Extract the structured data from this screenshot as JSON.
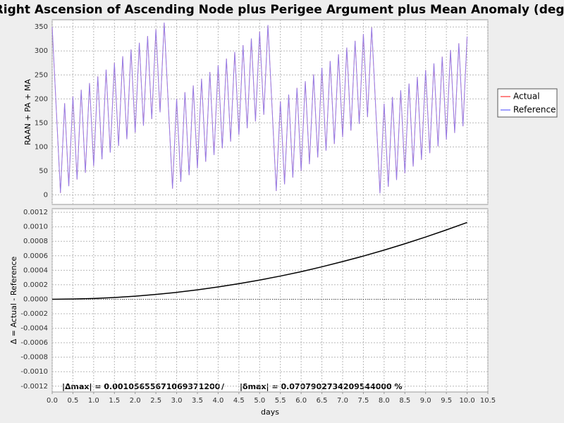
{
  "chart_data": [
    {
      "type": "line",
      "title": "Right Ascension of Ascending Node plus Perigee Argument plus Mean Anomaly (deg)",
      "ylabel": "RAAN + PA + MA",
      "x": [
        0,
        0.1,
        0.2,
        0.3,
        0.4,
        0.5,
        0.6,
        0.7,
        0.8,
        0.9,
        1,
        1.1,
        1.2,
        1.3,
        1.4,
        1.5,
        1.6,
        1.7,
        1.8,
        1.9,
        2,
        2.1,
        2.2,
        2.3,
        2.4,
        2.5,
        2.6,
        2.7,
        2.8,
        2.9,
        3,
        3.1,
        3.2,
        3.3,
        3.4,
        3.5,
        3.6,
        3.7,
        3.8,
        3.9,
        4,
        4.1,
        4.2,
        4.3,
        4.4,
        4.5,
        4.6,
        4.7,
        4.8,
        4.9,
        5,
        5.1,
        5.2,
        5.3,
        5.4,
        5.5,
        5.6,
        5.7,
        5.8,
        5.9,
        6,
        6.1,
        6.2,
        6.3,
        6.4,
        6.5,
        6.6,
        6.7,
        6.8,
        6.9,
        7,
        7.1,
        7.2,
        7.3,
        7.4,
        7.5,
        7.6,
        7.7,
        7.8,
        7.9,
        8,
        8.1,
        8.2,
        8.3,
        8.4,
        8.5,
        8.6,
        8.7,
        8.8,
        8.9,
        9,
        9.1,
        9.2,
        9.3,
        9.4,
        9.5,
        9.6,
        9.7,
        9.8,
        9.9,
        10
      ],
      "series": [
        {
          "name": "Actual",
          "color": "#ff5a5a",
          "values": [
            350,
            177,
            4,
            191,
            18,
            205,
            32,
            219,
            46,
            233,
            60,
            247,
            74,
            261,
            88,
            275,
            102,
            289,
            116,
            303,
            130,
            317,
            144,
            331,
            158,
            345,
            172,
            359,
            186,
            13,
            200,
            27,
            214,
            41,
            228,
            55,
            242,
            69,
            256,
            83,
            270,
            97,
            284,
            111,
            298,
            125,
            312,
            139,
            326,
            153,
            340,
            167,
            354,
            181,
            8,
            195,
            22,
            209,
            36,
            223,
            50,
            237,
            64,
            251,
            78,
            265,
            92,
            279,
            106,
            293,
            120,
            307,
            134,
            321,
            148,
            335,
            162,
            349,
            176,
            3,
            190,
            17,
            204,
            31,
            218,
            45,
            232,
            59,
            246,
            73,
            260,
            87,
            274,
            101,
            288,
            115,
            302,
            129,
            316,
            143,
            330
          ]
        },
        {
          "name": "Reference",
          "color": "#8080ff",
          "values": [
            350,
            177,
            4,
            191,
            18,
            205,
            32,
            219,
            46,
            233,
            60,
            247,
            74,
            261,
            88,
            275,
            102,
            289,
            116,
            303,
            130,
            317,
            144,
            331,
            158,
            345,
            172,
            359,
            186,
            13,
            200,
            27,
            214,
            41,
            228,
            55,
            242,
            69,
            256,
            83,
            270,
            97,
            284,
            111,
            298,
            125,
            312,
            139,
            326,
            153,
            340,
            167,
            354,
            181,
            8,
            195,
            22,
            209,
            36,
            223,
            50,
            237,
            64,
            251,
            78,
            265,
            92,
            279,
            106,
            293,
            120,
            307,
            134,
            321,
            148,
            335,
            162,
            349,
            176,
            3,
            190,
            17,
            204,
            31,
            218,
            45,
            232,
            59,
            246,
            73,
            260,
            87,
            274,
            101,
            288,
            115,
            302,
            129,
            316,
            143,
            330
          ]
        }
      ],
      "xlim": [
        0,
        10.5
      ],
      "ylim": [
        -20,
        365
      ],
      "yticks": [
        0,
        50,
        100,
        150,
        200,
        250,
        300,
        350
      ],
      "grid": true,
      "legend": "right"
    },
    {
      "type": "line",
      "xlabel": "days",
      "ylabel": "Δ = Actual - Reference",
      "x": [
        0,
        0.5,
        1,
        1.5,
        2,
        2.5,
        3,
        3.5,
        4,
        4.5,
        5,
        5.5,
        6,
        6.5,
        7,
        7.5,
        8,
        8.5,
        9,
        9.5,
        10
      ],
      "series": [
        {
          "color": "#000000",
          "values": [
            0,
            3e-06,
            1.1e-05,
            2.4e-05,
            4.2e-05,
            6.6e-05,
            9.5e-05,
            0.00013,
            0.00017,
            0.000215,
            0.000265,
            0.00032,
            0.00038,
            0.000448,
            0.00052,
            0.000596,
            0.000678,
            0.000766,
            0.000859,
            0.000957,
            0.00106
          ]
        }
      ],
      "xlim": [
        0,
        10.5
      ],
      "ylim": [
        -0.00128,
        0.00125
      ],
      "xticks": [
        {
          "value": 0,
          "label": "0.0"
        },
        {
          "value": 0.5,
          "label": "0.5"
        },
        {
          "value": 1,
          "label": "1.0"
        },
        {
          "value": 1.5,
          "label": "1.5"
        },
        {
          "value": 2,
          "label": "2.0"
        },
        {
          "value": 2.5,
          "label": "2.5"
        },
        {
          "value": 3,
          "label": "3.0"
        },
        {
          "value": 3.5,
          "label": "3.5"
        },
        {
          "value": 4,
          "label": "4.0"
        },
        {
          "value": 4.5,
          "label": "4.5"
        },
        {
          "value": 5,
          "label": "5.0"
        },
        {
          "value": 5.5,
          "label": "5.5"
        },
        {
          "value": 6,
          "label": "6.0"
        },
        {
          "value": 6.5,
          "label": "6.5"
        },
        {
          "value": 7,
          "label": "7.0"
        },
        {
          "value": 7.5,
          "label": "7.5"
        },
        {
          "value": 8,
          "label": "8.0"
        },
        {
          "value": 8.5,
          "label": "8.5"
        },
        {
          "value": 9,
          "label": "9.0"
        },
        {
          "value": 9.5,
          "label": "9.5"
        },
        {
          "value": 10,
          "label": "10.0"
        },
        {
          "value": 10.5,
          "label": "10.5"
        }
      ],
      "yticks": [
        {
          "value": 0.0012,
          "label": "0.0012"
        },
        {
          "value": 0.001,
          "label": "0.0010"
        },
        {
          "value": 0.0008,
          "label": "0.0008"
        },
        {
          "value": 0.0006,
          "label": "0.0006"
        },
        {
          "value": 0.0004,
          "label": "0.0004"
        },
        {
          "value": 0.0002,
          "label": "0.0002"
        },
        {
          "value": 0,
          "label": "0.0000"
        },
        {
          "value": -0.0002,
          "label": "-0.0002"
        },
        {
          "value": -0.0004,
          "label": "-0.0004"
        },
        {
          "value": -0.0006,
          "label": "-0.0006"
        },
        {
          "value": -0.0008,
          "label": "-0.0008"
        },
        {
          "value": -0.001,
          "label": "-0.0010"
        },
        {
          "value": -0.0012,
          "label": "-0.0012"
        }
      ],
      "grid": true,
      "annotations": [
        "|Δmax| = 0.00105655671069371200",
        "/",
        "|δmax| = 0.0707902734209544000 %"
      ]
    }
  ]
}
